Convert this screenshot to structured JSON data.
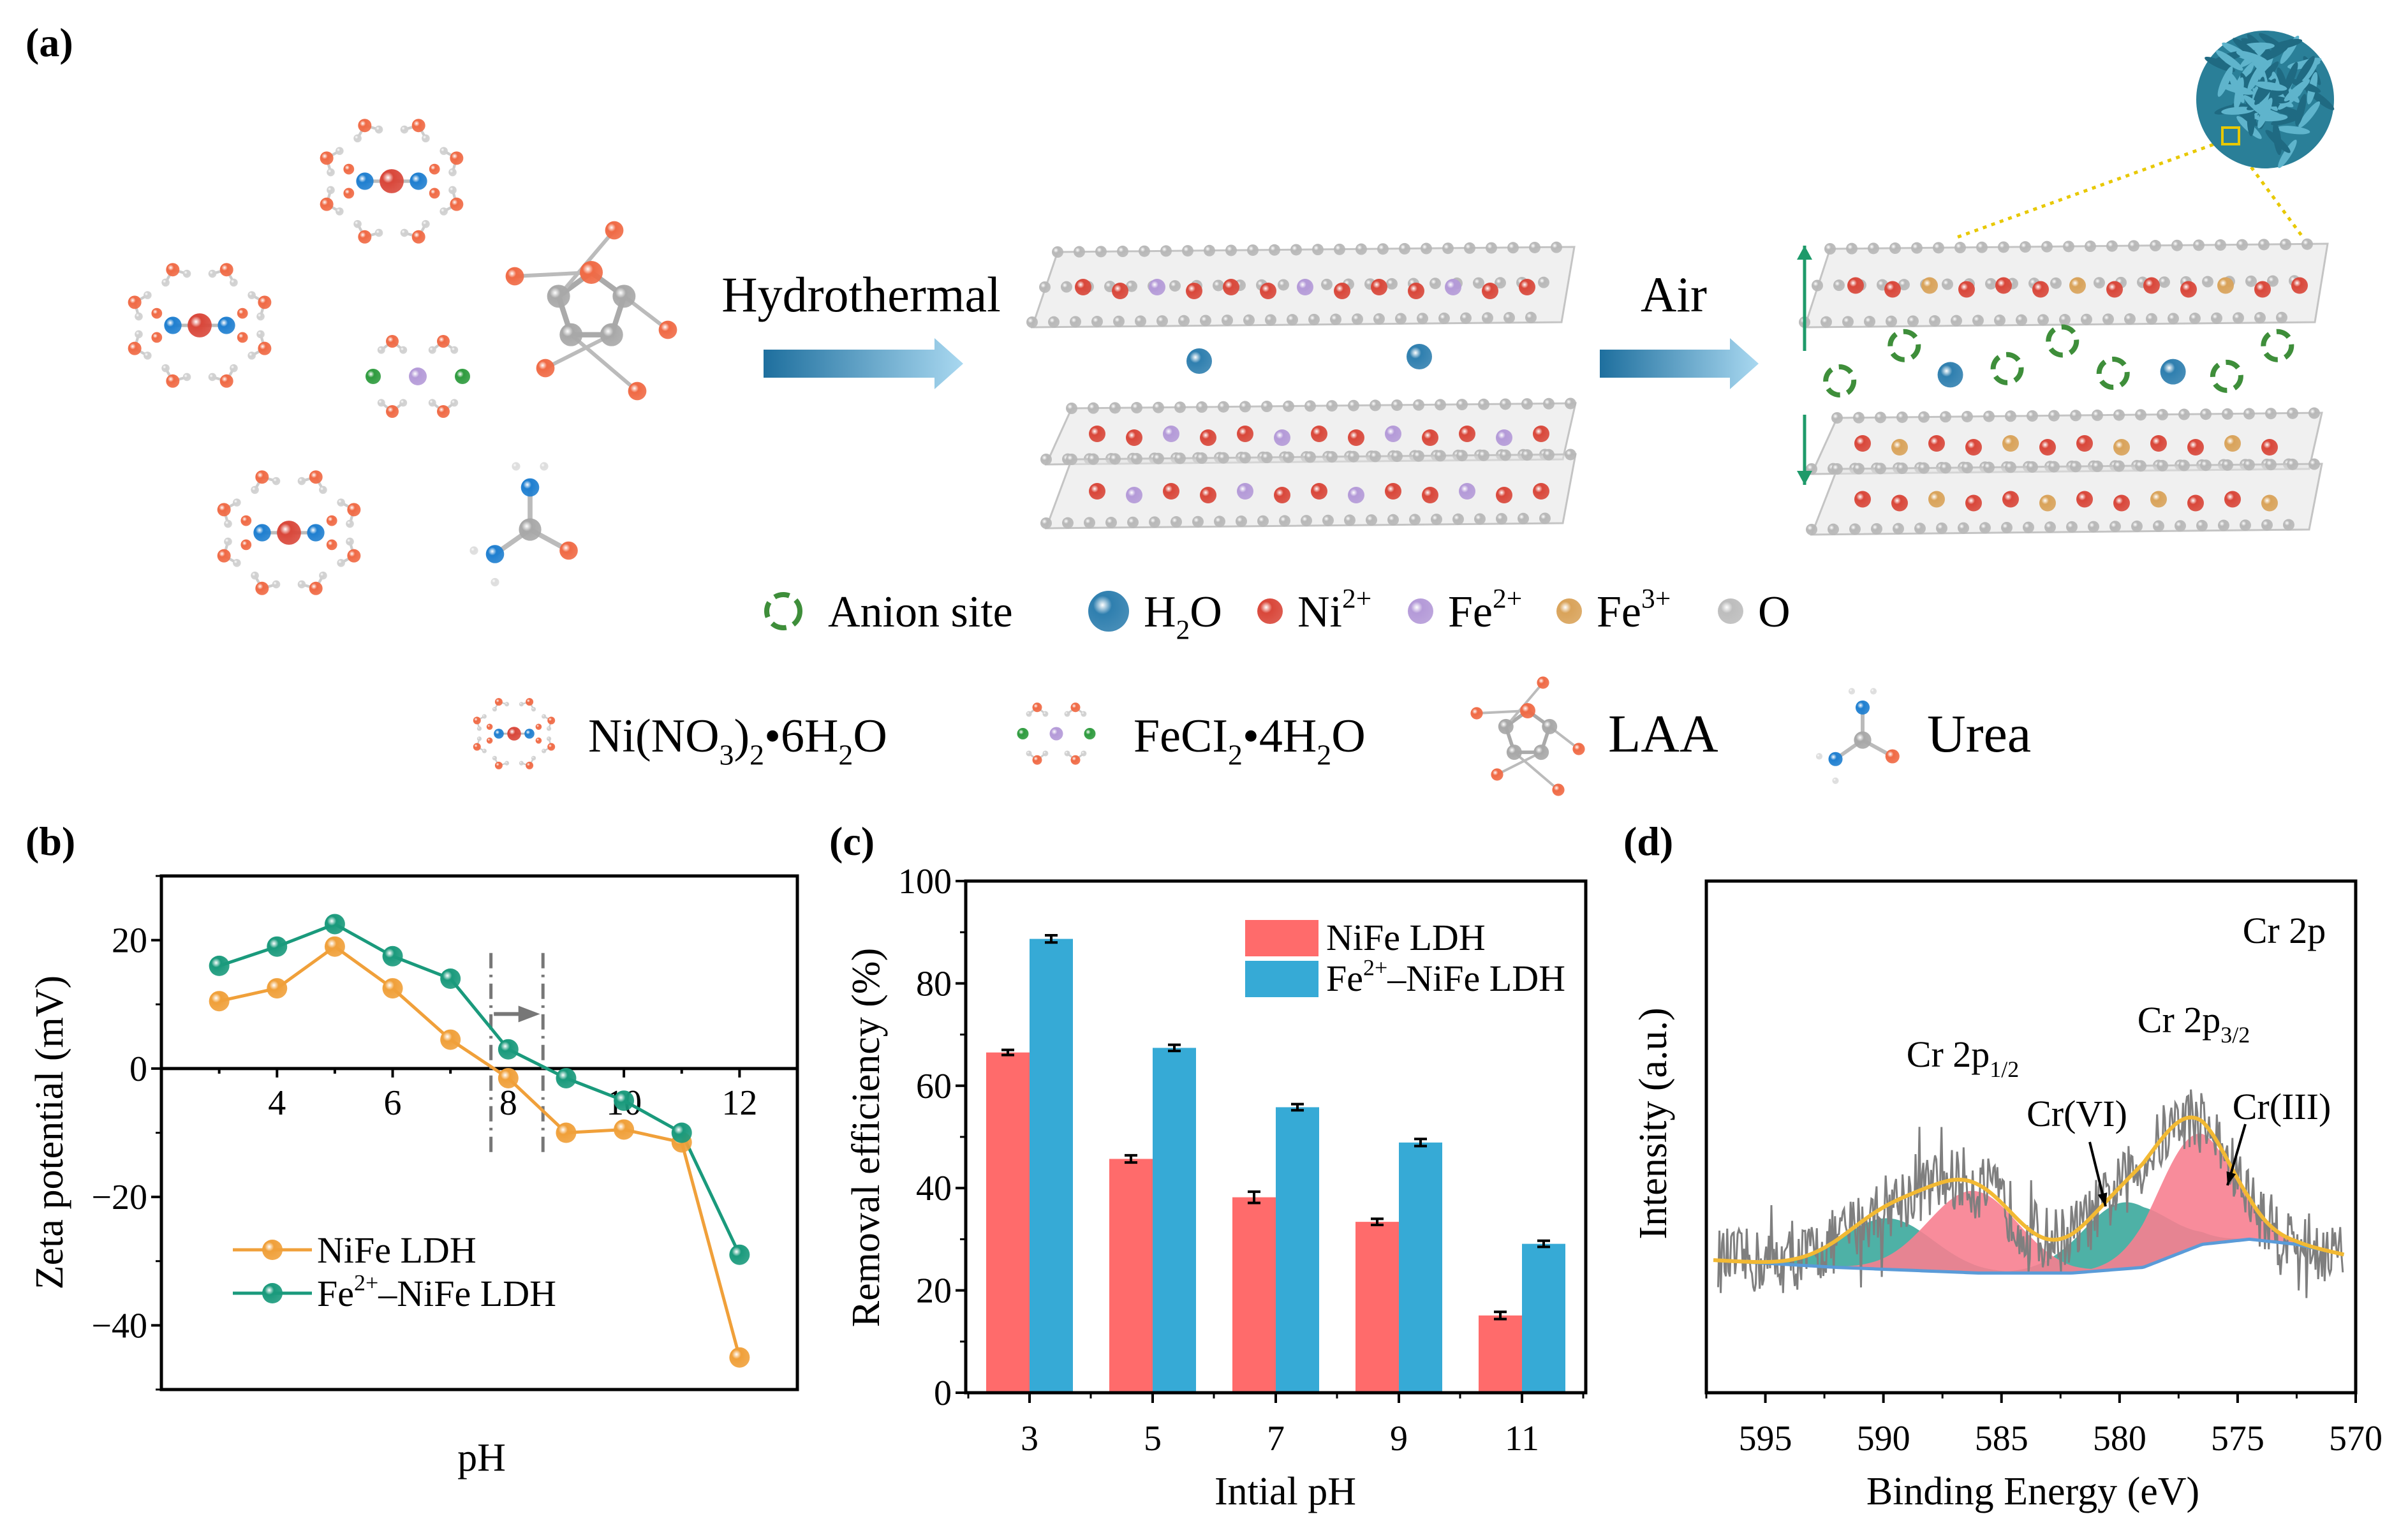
{
  "panel_a": {
    "label": "(a)",
    "step1_label": "Hydrothermal",
    "step2_label": "Air",
    "colors": {
      "ni": "#D9473A",
      "fe2": "#B49AD8",
      "fe3": "#D9A35A",
      "o": "#BDBDBD",
      "n": "#1F7FD0",
      "cl": "#2E9B3E",
      "h2o": "#2F7FAF",
      "anion": "#3E8E3A",
      "flower": "#2E8FA8"
    },
    "legend_structure": [
      {
        "icon": "anion-site-icon",
        "parts": [
          [
            "Anion site",
            ""
          ]
        ]
      },
      {
        "icon": "h2o-sphere-icon",
        "parts": [
          [
            "H",
            ""
          ],
          [
            "2",
            "sub"
          ],
          [
            "O",
            ""
          ]
        ]
      },
      {
        "icon": "ni-sphere-icon",
        "parts": [
          [
            "Ni",
            ""
          ],
          [
            "2+",
            "sup"
          ]
        ]
      },
      {
        "icon": "fe2-sphere-icon",
        "parts": [
          [
            "Fe",
            ""
          ],
          [
            "2+",
            "sup"
          ]
        ]
      },
      {
        "icon": "fe3-sphere-icon",
        "parts": [
          [
            "Fe",
            ""
          ],
          [
            "3+",
            "sup"
          ]
        ]
      },
      {
        "icon": "o-sphere-icon",
        "parts": [
          [
            "O",
            ""
          ]
        ]
      }
    ],
    "legend_reagents": [
      {
        "icon": "ni-nitrate-molecule-icon",
        "parts": [
          [
            "Ni(NO",
            ""
          ],
          [
            "3",
            "sub"
          ],
          [
            ")",
            ""
          ],
          [
            "2",
            "sub"
          ],
          [
            "•6H",
            ""
          ],
          [
            "2",
            "sub"
          ],
          [
            "O",
            ""
          ]
        ]
      },
      {
        "icon": "ferrous-chloride-molecule-icon",
        "parts": [
          [
            "FeCI",
            ""
          ],
          [
            "2",
            "sub"
          ],
          [
            "•4H",
            ""
          ],
          [
            "2",
            "sub"
          ],
          [
            "O",
            ""
          ]
        ]
      },
      {
        "icon": "laa-molecule-icon",
        "parts": [
          [
            "LAA",
            ""
          ]
        ]
      },
      {
        "icon": "urea-molecule-icon",
        "parts": [
          [
            "Urea",
            ""
          ]
        ]
      }
    ]
  },
  "chart_data": [
    {
      "type": "line",
      "panel_label": "(b)",
      "xlabel": "pH",
      "ylabel": "Zeta potential (mV)",
      "xlim": [
        2,
        13
      ],
      "ylim": [
        -50,
        30
      ],
      "xticks": [
        4,
        6,
        8,
        10,
        12
      ],
      "xtick_labels": [
        "4",
        "6",
        "8",
        "10",
        "12"
      ],
      "yticks": [
        20,
        0,
        -20,
        -40
      ],
      "ytick_labels": [
        "20",
        "0",
        "−20",
        "−40"
      ],
      "x": [
        3,
        4,
        5,
        6,
        7,
        8,
        9,
        10,
        11,
        12
      ],
      "series": [
        {
          "name": [
            [
              "NiFe LDH",
              ""
            ]
          ],
          "color": "#F0A03A",
          "values": [
            10.5,
            12.5,
            19,
            12.5,
            4.5,
            -1.5,
            -10,
            -9.5,
            -11.5,
            -45
          ]
        },
        {
          "name": [
            [
              "Fe",
              ""
            ],
            [
              "2+",
              "sup"
            ],
            [
              "–NiFe LDH",
              ""
            ]
          ],
          "color": "#1A9A7C",
          "values": [
            16,
            19,
            22.5,
            17.5,
            14,
            3,
            -1.5,
            -5,
            -10,
            -29
          ]
        }
      ],
      "legend": "lower-left",
      "annotations": {
        "dashed_lines_pH": [
          7.7,
          8.6
        ],
        "dashed_range_mV": [
          -14,
          18
        ],
        "arrow_from_pH": 7.75,
        "arrow_to_pH": 8.55,
        "arrow_mV": 8.5,
        "color": "#777777"
      }
    },
    {
      "type": "bar",
      "panel_label": "(c)",
      "xlabel": "Intial pH",
      "ylabel": "Removal efficiency (%)",
      "ylim": [
        0,
        100
      ],
      "yticks": [
        0,
        20,
        40,
        60,
        80,
        100
      ],
      "ytick_labels": [
        "0",
        "20",
        "40",
        "60",
        "80",
        "100"
      ],
      "categories": [
        "3",
        "5",
        "7",
        "9",
        "11"
      ],
      "series": [
        {
          "name": [
            [
              "NiFe LDH",
              ""
            ]
          ],
          "color": "#FF6B6B",
          "values": [
            66.5,
            45.7,
            38.2,
            33.4,
            15.1
          ],
          "errors": [
            0.5,
            0.7,
            1.1,
            0.6,
            0.7
          ]
        },
        {
          "name": [
            [
              "Fe",
              ""
            ],
            [
              "2+",
              "sup"
            ],
            [
              "–NiFe LDH",
              ""
            ]
          ],
          "color": "#36AAD6",
          "values": [
            88.7,
            67.4,
            55.8,
            48.9,
            29.1
          ],
          "errors": [
            0.7,
            0.6,
            0.6,
            0.7,
            0.6
          ]
        }
      ],
      "legend": "top-right"
    },
    {
      "type": "line",
      "panel_label": "(d)",
      "xlabel": "Binding Energy (eV)",
      "ylabel": "Intensity (a.u.)",
      "xlim": [
        597.5,
        570
      ],
      "ylim": [
        0,
        1
      ],
      "xticks": [
        595,
        590,
        585,
        580,
        575,
        570
      ],
      "xtick_labels": [
        "595",
        "590",
        "585",
        "580",
        "575",
        "570"
      ],
      "title": "Cr 2p",
      "background": [
        [
          597.5,
          0.26
        ],
        [
          592,
          0.245
        ],
        [
          586,
          0.234
        ],
        [
          582,
          0.234
        ],
        [
          579,
          0.245
        ],
        [
          576.5,
          0.29
        ],
        [
          574.5,
          0.3
        ],
        [
          572.5,
          0.29
        ],
        [
          570.5,
          0.27
        ]
      ],
      "components": [
        {
          "name": "Cr(VI) 2p1/2",
          "center": 589.8,
          "height": 0.1,
          "sigma": 1.9,
          "color": "#3BA89C"
        },
        {
          "name": "Cr(VI) 2p3/2",
          "center": 579.8,
          "height": 0.13,
          "sigma": 1.8,
          "color": "#3BA89C"
        },
        {
          "name": "Cr(III) 2p1/2",
          "center": 586.2,
          "height": 0.16,
          "sigma": 1.9,
          "color": "#F77F90"
        },
        {
          "name": "Cr(III) 2p3/2",
          "center": 576.8,
          "height": 0.22,
          "sigma": 1.6,
          "color": "#F77F90"
        }
      ],
      "raw_range": [
        597,
        570.5
      ],
      "colors": {
        "raw": "#7F7F7F",
        "envelope": "#F2B933",
        "background": "#5A9BD8"
      },
      "annotations": [
        {
          "id": "cr2p12",
          "parts": [
            [
              "Cr 2p",
              ""
            ],
            [
              "1/2",
              "sub"
            ]
          ]
        },
        {
          "id": "cr2p32",
          "parts": [
            [
              "Cr 2p",
              ""
            ],
            [
              "3/2",
              "sub"
            ]
          ]
        },
        {
          "id": "crvi",
          "parts": [
            [
              "Cr(VI)",
              ""
            ]
          ]
        },
        {
          "id": "criii",
          "parts": [
            [
              "Cr(III)",
              ""
            ]
          ]
        }
      ]
    }
  ]
}
